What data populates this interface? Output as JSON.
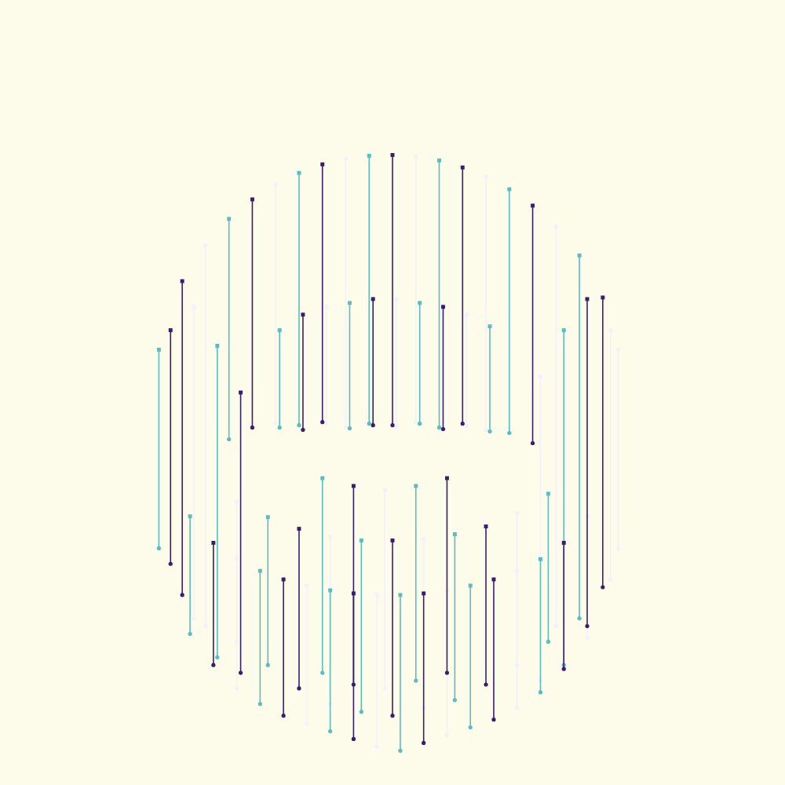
{
  "chart_data": {
    "type": "scatter",
    "xlim": [
      0,
      1000
    ],
    "ylim": [
      1000,
      0
    ],
    "grid": false,
    "tick_labels": false,
    "series": [
      {
        "color": "#3b1d6e",
        "x": [
          230,
          320,
          410,
          500,
          590,
          680,
          770,
          385,
          475,
          565,
          215,
          305,
          750,
          270,
          360,
          450,
          540,
          630,
          720,
          450,
          570,
          380,
          500,
          620
        ],
        "top": [
          357,
          252,
          207,
          195,
          211,
          260,
          378,
          400,
          380,
          390,
          420,
          500,
          380,
          693,
          740,
          758,
          758,
          740,
          693,
          620,
          610,
          675,
          690,
          672
        ],
        "bottom": [
          760,
          545,
          538,
          542,
          540,
          565,
          750,
          548,
          542,
          547,
          720,
          860,
          800,
          850,
          915,
          945,
          950,
          920,
          855,
          875,
          860,
          880,
          915,
          875
        ]
      },
      {
        "color": "#5bbcc2",
        "x": [
          200,
          290,
          380,
          470,
          560,
          650,
          740,
          355,
          445,
          535,
          625,
          275,
          720,
          240,
          330,
          420,
          510,
          600,
          690,
          410,
          530,
          340,
          460,
          580,
          700
        ],
        "top": [
          445,
          277,
          218,
          196,
          202,
          239,
          324,
          420,
          385,
          385,
          415,
          440,
          420,
          659,
          729,
          754,
          760,
          748,
          714,
          610,
          620,
          660,
          690,
          682,
          630
        ],
        "bottom": [
          700,
          560,
          542,
          540,
          545,
          552,
          790,
          545,
          546,
          540,
          550,
          840,
          850,
          810,
          900,
          935,
          960,
          930,
          885,
          860,
          870,
          850,
          910,
          895,
          820
        ]
      },
      {
        "color": "#f3f1fb",
        "x": [
          260,
          350,
          440,
          530,
          620,
          710,
          790,
          415,
          505,
          595,
          245,
          690,
          780,
          300,
          390,
          480,
          570,
          660,
          750,
          490,
          300,
          420,
          540,
          660
        ],
        "top": [
          311,
          233,
          200,
          197,
          223,
          287,
          445,
          390,
          380,
          400,
          390,
          480,
          420,
          714,
          748,
          760,
          754,
          729,
          659,
          625,
          640,
          685,
          688,
          655
        ],
        "bottom": [
          800,
          540,
          545,
          538,
          548,
          800,
          700,
          540,
          544,
          543,
          790,
          870,
          740,
          880,
          925,
          955,
          940,
          905,
          815,
          880,
          820,
          900,
          905,
          850
        ]
      }
    ]
  }
}
